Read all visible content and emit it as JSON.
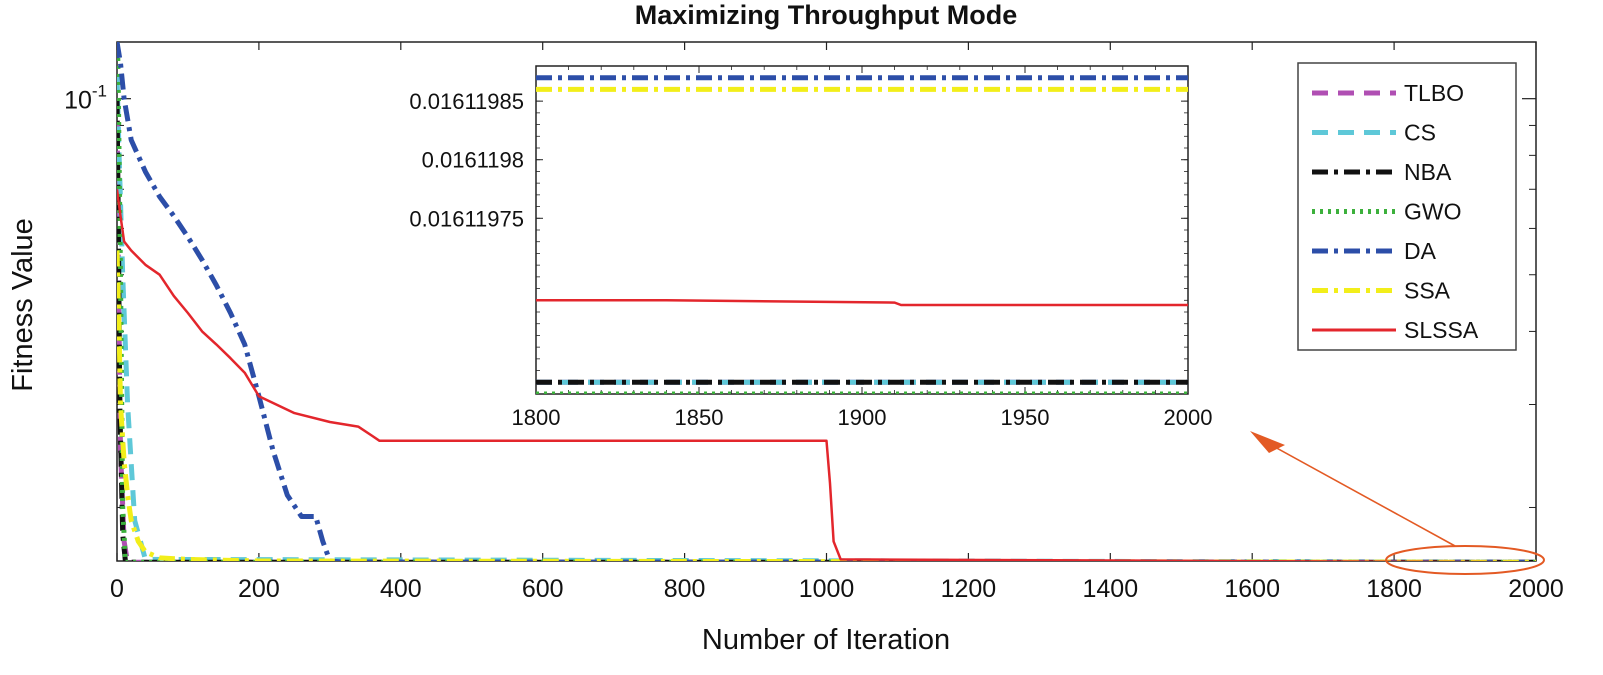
{
  "chart_data": {
    "type": "line",
    "title": "Maximizing Throughput Mode",
    "xlabel": "Number of Iteration",
    "ylabel": "Fitness Value",
    "xlim": [
      0,
      2000
    ],
    "ylim": [
      0.0162,
      0.125
    ],
    "yscale": "log",
    "grid": false,
    "legend_placement": "top-right",
    "x_ticks": [
      {
        "value": 0,
        "label": "0"
      },
      {
        "value": 200,
        "label": "200"
      },
      {
        "value": 400,
        "label": "400"
      },
      {
        "value": 600,
        "label": "600"
      },
      {
        "value": 800,
        "label": "800"
      },
      {
        "value": 1000,
        "label": "1000"
      },
      {
        "value": 1200,
        "label": "1200"
      },
      {
        "value": 1400,
        "label": "1400"
      },
      {
        "value": 1600,
        "label": "1600"
      },
      {
        "value": 1800,
        "label": "1800"
      },
      {
        "value": 2000,
        "label": "2000"
      }
    ],
    "y_ticks": [
      {
        "value": 0.1,
        "base": "10",
        "exponent": "-1"
      }
    ],
    "series": [
      {
        "name": "TLBO",
        "color": "#b04fb3",
        "dash": "dashed",
        "x": [
          0,
          2,
          5,
          10,
          15,
          2000
        ],
        "y": [
          0.1,
          0.05,
          0.025,
          0.0175,
          0.01612,
          0.01612
        ]
      },
      {
        "name": "CS",
        "color": "#5ec8d8",
        "dash": "dashed",
        "x": [
          0,
          3,
          8,
          15,
          25,
          40,
          2000
        ],
        "y": [
          0.11,
          0.08,
          0.05,
          0.03,
          0.019,
          0.0163,
          0.01612
        ]
      },
      {
        "name": "NBA",
        "color": "#111111",
        "dash": "dashdot",
        "x": [
          0,
          2,
          4,
          8,
          12,
          2000
        ],
        "y": [
          0.1,
          0.06,
          0.03,
          0.018,
          0.01612,
          0.01612
        ]
      },
      {
        "name": "GWO",
        "color": "#3cb03c",
        "dash": "dotted",
        "x": [
          0,
          1,
          2,
          5,
          8,
          12,
          2000
        ],
        "y": [
          0.125,
          0.12,
          0.1,
          0.05,
          0.02,
          0.01612,
          0.01612
        ]
      },
      {
        "name": "DA",
        "color": "#2c4ea8",
        "dash": "dashdot",
        "x": [
          0,
          5,
          10,
          20,
          40,
          60,
          80,
          100,
          120,
          140,
          160,
          180,
          200,
          220,
          240,
          260,
          280,
          290,
          300,
          320,
          2000
        ],
        "y": [
          0.125,
          0.115,
          0.1,
          0.085,
          0.075,
          0.068,
          0.063,
          0.058,
          0.053,
          0.048,
          0.043,
          0.038,
          0.031,
          0.025,
          0.021,
          0.0193,
          0.0193,
          0.0175,
          0.0162,
          0.01612,
          0.01612
        ]
      },
      {
        "name": "SSA",
        "color": "#f2ee1a",
        "dash": "dashdot",
        "x": [
          0,
          3,
          5,
          10,
          15,
          20,
          30,
          40,
          60,
          100,
          200,
          2000
        ],
        "y": [
          0.055,
          0.04,
          0.03,
          0.024,
          0.021,
          0.019,
          0.0175,
          0.0168,
          0.0164,
          0.0163,
          0.0162,
          0.01612
        ]
      },
      {
        "name": "SLSSA",
        "color": "#e3262c",
        "dash": "solid",
        "x": [
          0,
          2,
          5,
          10,
          20,
          40,
          60,
          80,
          100,
          120,
          140,
          160,
          180,
          200,
          250,
          300,
          340,
          360,
          370,
          400,
          800,
          1000,
          1005,
          1010,
          1020,
          2000
        ],
        "y": [
          0.07,
          0.067,
          0.063,
          0.057,
          0.055,
          0.052,
          0.05,
          0.046,
          0.043,
          0.04,
          0.038,
          0.036,
          0.034,
          0.031,
          0.029,
          0.028,
          0.0275,
          0.0265,
          0.026,
          0.026,
          0.026,
          0.026,
          0.022,
          0.0175,
          0.0163,
          0.01612
        ]
      }
    ],
    "inset": {
      "xlim": [
        1800,
        2000
      ],
      "ylim": [
        0.0161196,
        0.01611988
      ],
      "x_ticks": [
        {
          "value": 1800,
          "label": "1800"
        },
        {
          "value": 1850,
          "label": "1850"
        },
        {
          "value": 1900,
          "label": "1900"
        },
        {
          "value": 1950,
          "label": "1950"
        },
        {
          "value": 2000,
          "label": "2000"
        }
      ],
      "y_ticks": [
        {
          "value": 0.01611975,
          "label": "0.01611975"
        },
        {
          "value": 0.0161198,
          "label": "0.0161198"
        },
        {
          "value": 0.01611985,
          "label": "0.01611985"
        }
      ],
      "series": [
        {
          "name": "TLBO",
          "x": [
            1800,
            2000
          ],
          "y": [
            0.01611961,
            0.01611961
          ]
        },
        {
          "name": "CS",
          "x": [
            1800,
            2000
          ],
          "y": [
            0.01611961,
            0.01611961
          ]
        },
        {
          "name": "NBA",
          "x": [
            1800,
            2000
          ],
          "y": [
            0.01611961,
            0.01611961
          ]
        },
        {
          "name": "GWO",
          "x": [
            1800,
            2000
          ],
          "y": [
            0.0161196,
            0.0161196
          ]
        },
        {
          "name": "DA",
          "x": [
            1800,
            2000
          ],
          "y": [
            0.01611987,
            0.01611987
          ]
        },
        {
          "name": "SSA",
          "x": [
            1800,
            2000
          ],
          "y": [
            0.01611986,
            0.01611986
          ]
        },
        {
          "name": "SLSSA",
          "x": [
            1800,
            1840,
            1910,
            1912,
            2000
          ],
          "y": [
            0.01611968,
            0.01611968,
            0.016119678,
            0.016119676,
            0.016119676
          ]
        }
      ]
    },
    "annotation": {
      "type": "ellipse-arrow",
      "color": "#e35a24",
      "x_range": [
        1800,
        2000
      ],
      "points_to": "inset"
    }
  }
}
